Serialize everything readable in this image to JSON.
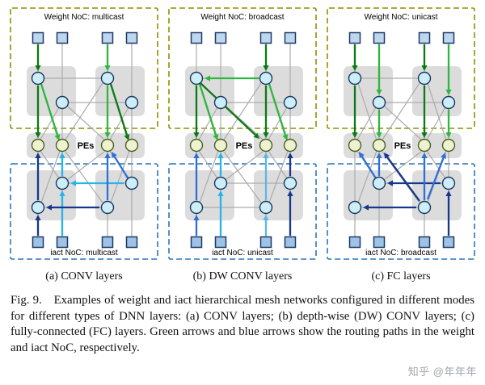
{
  "figure": {
    "panels": [
      {
        "id": "a",
        "weight_label": "Weight NoC: multicast",
        "iact_label": "iact NoC: multicast",
        "pes_label": "PEs",
        "subcaption": "(a) CONV layers"
      },
      {
        "id": "b",
        "weight_label": "Weight NoC: broadcast",
        "iact_label": "iact NoC: unicast",
        "pes_label": "PEs",
        "subcaption": "(b) DW CONV layers"
      },
      {
        "id": "c",
        "weight_label": "Weight NoC: unicast",
        "iact_label": "iact NoC: broadcast",
        "pes_label": "PEs",
        "subcaption": "(c) FC layers"
      }
    ],
    "caption": "Fig. 9.  Examples of weight and iact hierarchical mesh networks configured in different modes for different types of DNN layers: (a) CONV layers; (b) depth-wise (DW) CONV layers; (c) fully-connected (FC) layers. Green arrows and blue arrows show the routing paths in the weight and iact NoC, respectively.",
    "watermark": "知乎 @年年年",
    "colors": {
      "weight_box": "#8f8f00",
      "iact_box": "#2e75b6",
      "cluster_bg": "#dcdcdc",
      "mesh_line": "#ababab",
      "square_top_fill": "#bdd7ee",
      "square_bot_fill": "#9dc3e6",
      "square_border": "#1f3864",
      "router_fill": "#cdeef8",
      "router_border": "#17375e",
      "pe_fill": "#edf2d0",
      "pe_border": "#4a5e1f",
      "gd": "#0b7a12",
      "gr": "#2db83d",
      "cy": "#25b4ea",
      "bl": "#2e6fd8",
      "lb": "#58b8e8",
      "nv": "#17368c"
    },
    "routing": {
      "a": {
        "weight": [
          [
            38,
            50,
            38,
            83,
            "gd"
          ],
          [
            38,
            101,
            38,
            166,
            "gd"
          ],
          [
            42,
            99,
            64,
            169,
            "gr"
          ],
          [
            124,
            50,
            124,
            83,
            "gr"
          ],
          [
            124,
            101,
            124,
            166,
            "gr"
          ],
          [
            128,
            99,
            150,
            169,
            "gd"
          ]
        ],
        "iact": [
          [
            38,
            287,
            38,
            261,
            "nv"
          ],
          [
            38,
            243,
            38,
            184,
            "nv"
          ],
          [
            68,
            287,
            68,
            231,
            "cy"
          ],
          [
            68,
            213,
            68,
            184,
            "cy"
          ],
          [
            144,
            222,
            78,
            222,
            "cy"
          ],
          [
            114,
            252,
            48,
            252,
            "nv"
          ],
          [
            150,
            217,
            129,
            183,
            "bl"
          ],
          [
            124,
            243,
            124,
            184,
            "bl"
          ]
        ]
      },
      "b": {
        "weight": [
          [
            124,
            50,
            124,
            83,
            "gd"
          ],
          [
            115,
            92,
            48,
            92,
            "gr"
          ],
          [
            38,
            101,
            38,
            166,
            "gd"
          ],
          [
            42,
            99,
            64,
            169,
            "gr"
          ],
          [
            43,
            98,
            116,
            167,
            "gd"
          ],
          [
            124,
            101,
            124,
            166,
            "gd"
          ],
          [
            128,
            99,
            150,
            169,
            "gr"
          ]
        ],
        "iact": [
          [
            38,
            287,
            38,
            261,
            "bl"
          ],
          [
            38,
            243,
            38,
            184,
            "bl"
          ],
          [
            68,
            287,
            68,
            231,
            "cy"
          ],
          [
            68,
            213,
            68,
            184,
            "cy"
          ],
          [
            124,
            287,
            124,
            261,
            "lb"
          ],
          [
            124,
            243,
            124,
            184,
            "lb"
          ],
          [
            154,
            287,
            154,
            231,
            "nv"
          ],
          [
            154,
            213,
            154,
            184,
            "nv"
          ]
        ]
      },
      "c": {
        "weight": [
          [
            38,
            50,
            38,
            83,
            "gd"
          ],
          [
            38,
            101,
            38,
            166,
            "gd"
          ],
          [
            68,
            50,
            68,
            113,
            "gr"
          ],
          [
            68,
            131,
            68,
            166,
            "gr"
          ],
          [
            124,
            50,
            124,
            83,
            "gd"
          ],
          [
            124,
            101,
            124,
            166,
            "gd"
          ],
          [
            154,
            50,
            154,
            113,
            "gr"
          ],
          [
            154,
            131,
            154,
            166,
            "gr"
          ]
        ],
        "iact": [
          [
            154,
            287,
            154,
            231,
            "nv"
          ],
          [
            144,
            222,
            78,
            222,
            "nv"
          ],
          [
            64,
            216,
            43,
            183,
            "bl"
          ],
          [
            68,
            213,
            68,
            184,
            "bl"
          ],
          [
            124,
            243,
            124,
            184,
            "bl"
          ],
          [
            128,
            242,
            150,
            184,
            "bl"
          ],
          [
            118,
            244,
            74,
            184,
            "nv"
          ],
          [
            114,
            252,
            48,
            252,
            "nv"
          ]
        ]
      }
    }
  }
}
